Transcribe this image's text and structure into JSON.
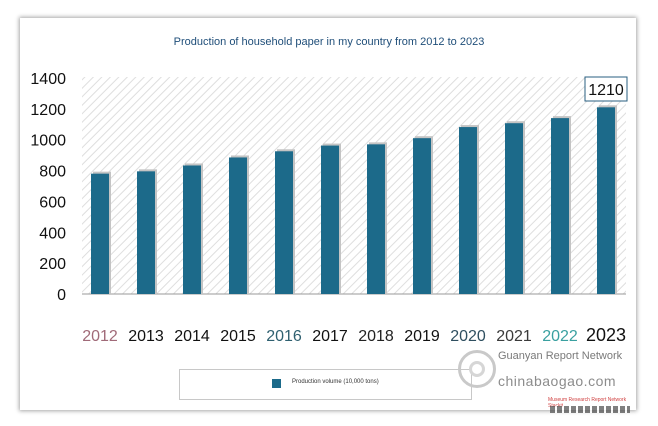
{
  "chart_data": {
    "type": "bar",
    "title": "Production of household paper in my country from 2012 to 2023",
    "categories": [
      "2012",
      "2013",
      "2014",
      "2015",
      "2016",
      "2017",
      "2018",
      "2019",
      "2020",
      "2021",
      "2022",
      "2023"
    ],
    "series": [
      {
        "name": "Production volume (10,000 tons)",
        "color": "#1c6a8a",
        "values": [
          780,
          795,
          833,
          885,
          925,
          962,
          970,
          1010,
          1082,
          1107,
          1140,
          1210
        ]
      }
    ],
    "ylim": [
      0,
      1400
    ],
    "yticks": [
      0,
      200,
      400,
      600,
      800,
      1000,
      1200,
      1400
    ],
    "annotation": {
      "category": "2023",
      "text": "1210"
    },
    "tick_colors": [
      "#a06a78",
      "#111111",
      "#111111",
      "#111111",
      "#2f6070",
      "#111111",
      "#222222",
      "#111111",
      "#2f4f60",
      "#3a3a3a",
      "#3aa0a0",
      "#111111"
    ],
    "legend": {
      "position": "bottom-center"
    }
  },
  "watermark": {
    "name": "Guanyan Report Network",
    "site": "chinabaogao.com",
    "note": "Museum Research Report Network Stackit"
  }
}
